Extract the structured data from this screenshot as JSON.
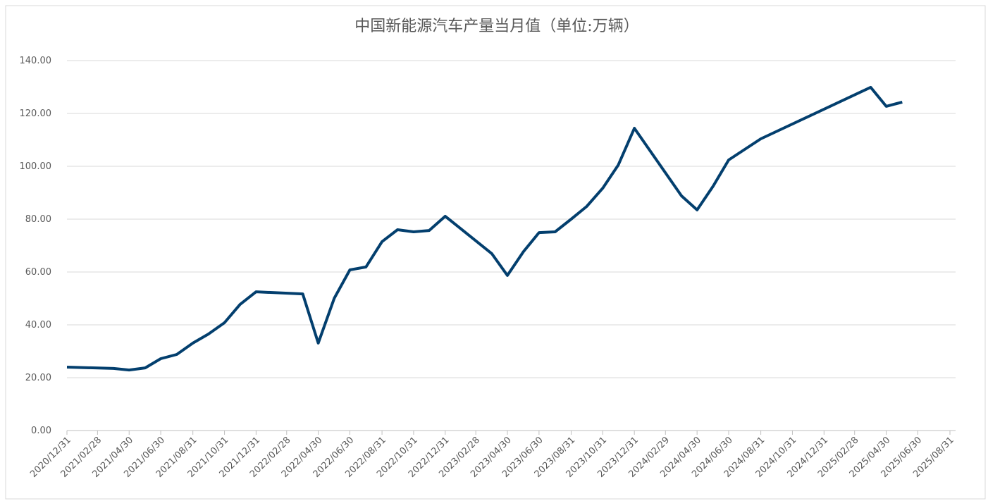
{
  "chart_data": {
    "type": "line",
    "title": "中国新能源汽车产量当月值（单位:万辆）",
    "x": [
      "2020/12/31",
      "2021/03/31",
      "2021/04/30",
      "2021/05/31",
      "2021/06/30",
      "2021/07/31",
      "2021/08/31",
      "2021/09/30",
      "2021/10/31",
      "2021/11/30",
      "2021/12/31",
      "2022/03/31",
      "2022/04/30",
      "2022/05/31",
      "2022/06/30",
      "2022/07/31",
      "2022/08/31",
      "2022/09/30",
      "2022/10/31",
      "2022/11/30",
      "2022/12/31",
      "2023/03/31",
      "2023/04/30",
      "2023/05/31",
      "2023/06/30",
      "2023/07/31",
      "2023/08/31",
      "2023/09/30",
      "2023/10/31",
      "2023/11/30",
      "2023/12/31",
      "2024/03/31",
      "2024/04/30",
      "2024/05/31",
      "2024/06/30",
      "2024/07/31",
      "2024/08/31",
      "2025/03/31",
      "2025/04/30",
      "2025/05/31"
    ],
    "series": [
      {
        "name": "中国新能源汽车产量当月值",
        "color": "#033f6e",
        "values": [
          24.0,
          23.5,
          22.9,
          23.7,
          27.2,
          28.8,
          33.1,
          36.5,
          40.8,
          47.7,
          52.5,
          51.7,
          33.1,
          50.1,
          60.8,
          61.9,
          71.5,
          76.0,
          75.2,
          75.7,
          81.1,
          66.9,
          58.7,
          67.7,
          74.9,
          75.2,
          80.0,
          84.8,
          91.7,
          100.5,
          114.4,
          88.8,
          83.5,
          92.5,
          102.4,
          106.4,
          110.4,
          129.9,
          122.7,
          124.3
        ]
      }
    ],
    "xlim": [
      "2020/12/31",
      "2025/08/31"
    ],
    "xticks": [
      "2020/12/31",
      "2021/02/28",
      "2021/04/30",
      "2021/06/30",
      "2021/08/31",
      "2021/10/31",
      "2021/12/31",
      "2022/02/28",
      "2022/04/30",
      "2022/06/30",
      "2022/08/31",
      "2022/10/31",
      "2022/12/31",
      "2023/02/28",
      "2023/04/30",
      "2023/06/30",
      "2023/08/31",
      "2023/10/31",
      "2023/12/31",
      "2024/02/29",
      "2024/04/30",
      "2024/06/30",
      "2024/08/31",
      "2024/10/31",
      "2024/12/31",
      "2025/02/28",
      "2025/04/30",
      "2025/06/30",
      "2025/08/31"
    ],
    "ylim": [
      0,
      140
    ],
    "yticks": [
      {
        "value": 0,
        "label": "0.00"
      },
      {
        "value": 20,
        "label": "20.00"
      },
      {
        "value": 40,
        "label": "40.00"
      },
      {
        "value": 60,
        "label": "60.00"
      },
      {
        "value": 80,
        "label": "80.00"
      },
      {
        "value": 100,
        "label": "100.00"
      },
      {
        "value": 120,
        "label": "120.00"
      },
      {
        "value": 140,
        "label": "140.00"
      }
    ],
    "grid": true
  }
}
